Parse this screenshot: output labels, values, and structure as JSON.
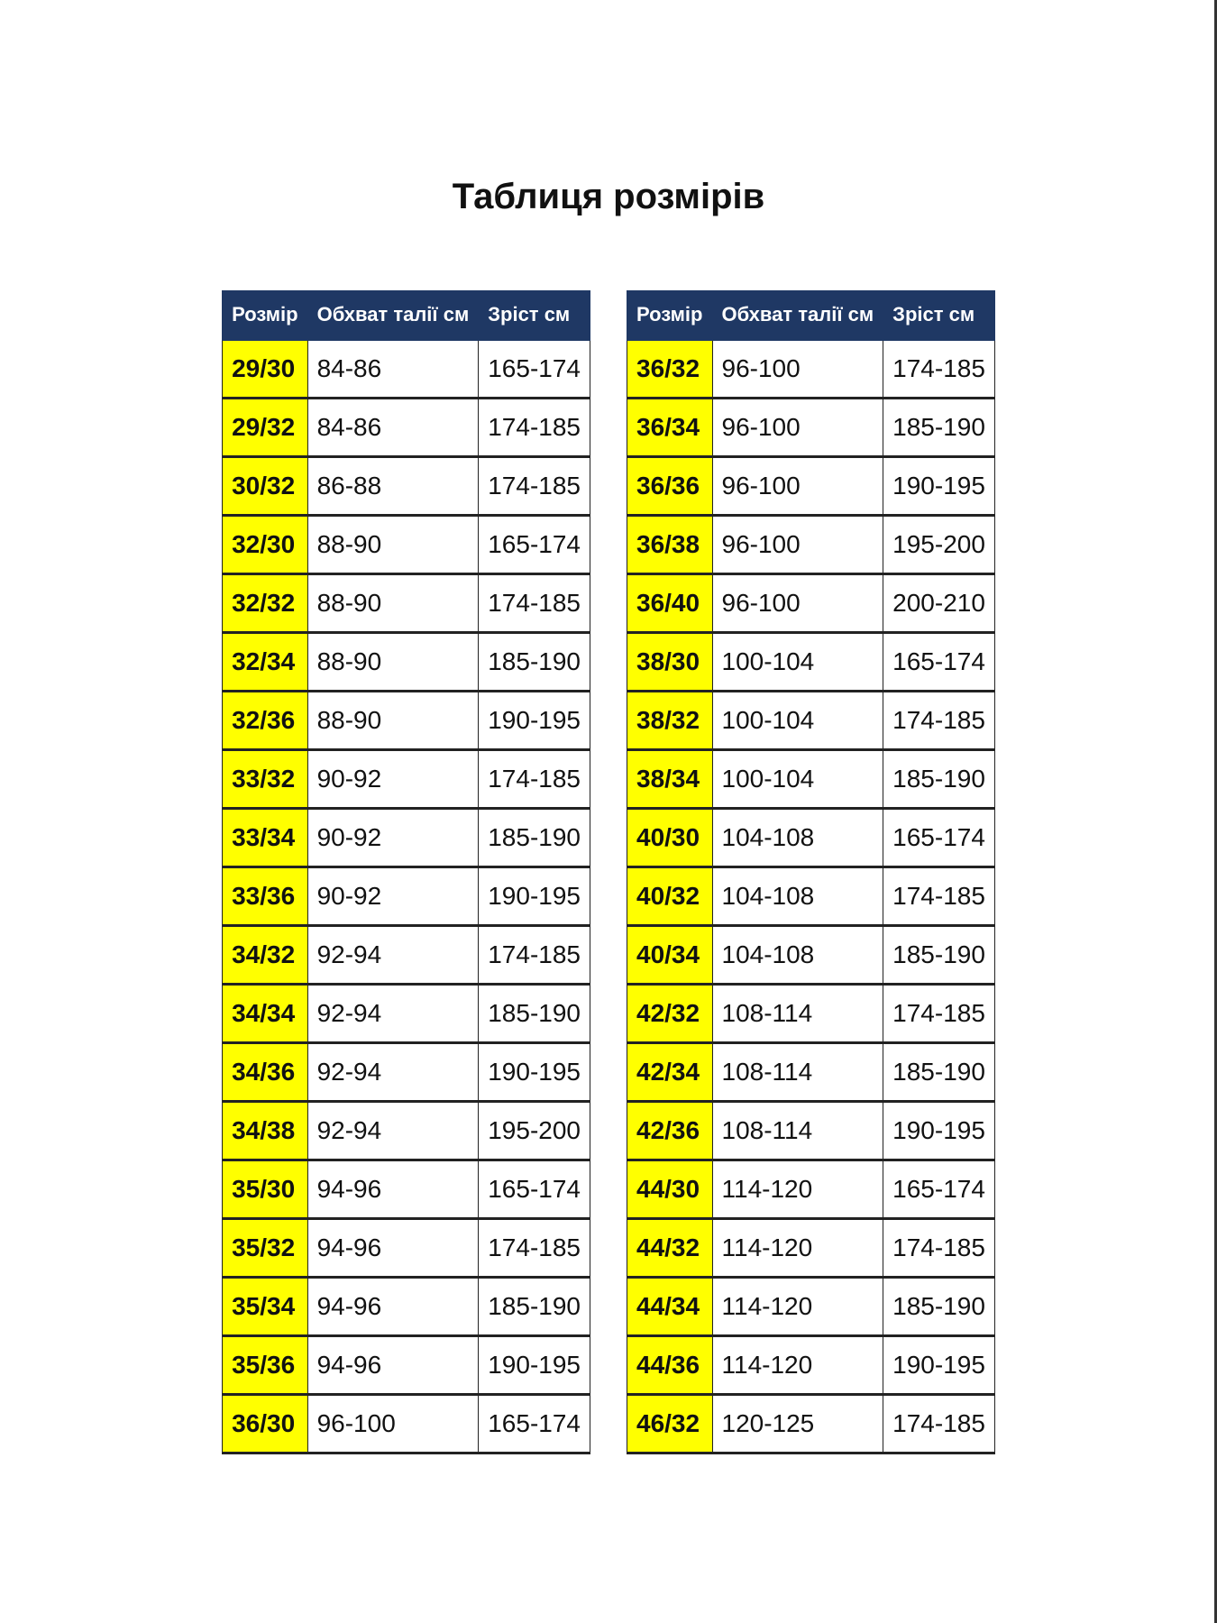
{
  "title": "Таблиця розмірів",
  "columns": [
    "Розмір",
    "Обхват талії см",
    "Зріст см"
  ],
  "colors": {
    "header_bg": "#1f3864",
    "size_bg": "#ffff00"
  },
  "left_table": [
    [
      "29/30",
      "84-86",
      "165-174"
    ],
    [
      "29/32",
      "84-86",
      "174-185"
    ],
    [
      "30/32",
      "86-88",
      "174-185"
    ],
    [
      "32/30",
      "88-90",
      "165-174"
    ],
    [
      "32/32",
      "88-90",
      "174-185"
    ],
    [
      "32/34",
      "88-90",
      "185-190"
    ],
    [
      "32/36",
      "88-90",
      "190-195"
    ],
    [
      "33/32",
      "90-92",
      "174-185"
    ],
    [
      "33/34",
      "90-92",
      "185-190"
    ],
    [
      "33/36",
      "90-92",
      "190-195"
    ],
    [
      "34/32",
      "92-94",
      "174-185"
    ],
    [
      "34/34",
      "92-94",
      "185-190"
    ],
    [
      "34/36",
      "92-94",
      "190-195"
    ],
    [
      "34/38",
      "92-94",
      "195-200"
    ],
    [
      "35/30",
      "94-96",
      "165-174"
    ],
    [
      "35/32",
      "94-96",
      "174-185"
    ],
    [
      "35/34",
      "94-96",
      "185-190"
    ],
    [
      "35/36",
      "94-96",
      "190-195"
    ],
    [
      "36/30",
      "96-100",
      "165-174"
    ]
  ],
  "right_table": [
    [
      "36/32",
      "96-100",
      "174-185"
    ],
    [
      "36/34",
      "96-100",
      "185-190"
    ],
    [
      "36/36",
      "96-100",
      "190-195"
    ],
    [
      "36/38",
      "96-100",
      "195-200"
    ],
    [
      "36/40",
      "96-100",
      "200-210"
    ],
    [
      "38/30",
      "100-104",
      "165-174"
    ],
    [
      "38/32",
      "100-104",
      "174-185"
    ],
    [
      "38/34",
      "100-104",
      "185-190"
    ],
    [
      "40/30",
      "104-108",
      "165-174"
    ],
    [
      "40/32",
      "104-108",
      "174-185"
    ],
    [
      "40/34",
      "104-108",
      "185-190"
    ],
    [
      "42/32",
      "108-114",
      "174-185"
    ],
    [
      "42/34",
      "108-114",
      "185-190"
    ],
    [
      "42/36",
      "108-114",
      "190-195"
    ],
    [
      "44/30",
      "114-120",
      "165-174"
    ],
    [
      "44/32",
      "114-120",
      "174-185"
    ],
    [
      "44/34",
      "114-120",
      "185-190"
    ],
    [
      "44/36",
      "114-120",
      "190-195"
    ],
    [
      "46/32",
      "120-125",
      "174-185"
    ]
  ]
}
